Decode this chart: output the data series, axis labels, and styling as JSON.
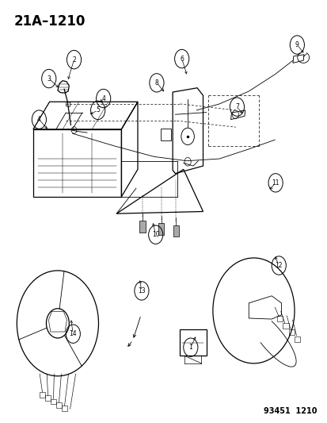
{
  "title": "21A–1210",
  "footer": "93451  1210",
  "bg_color": "#ffffff",
  "line_color": "#000000",
  "title_fontsize": 12,
  "footer_fontsize": 7
}
